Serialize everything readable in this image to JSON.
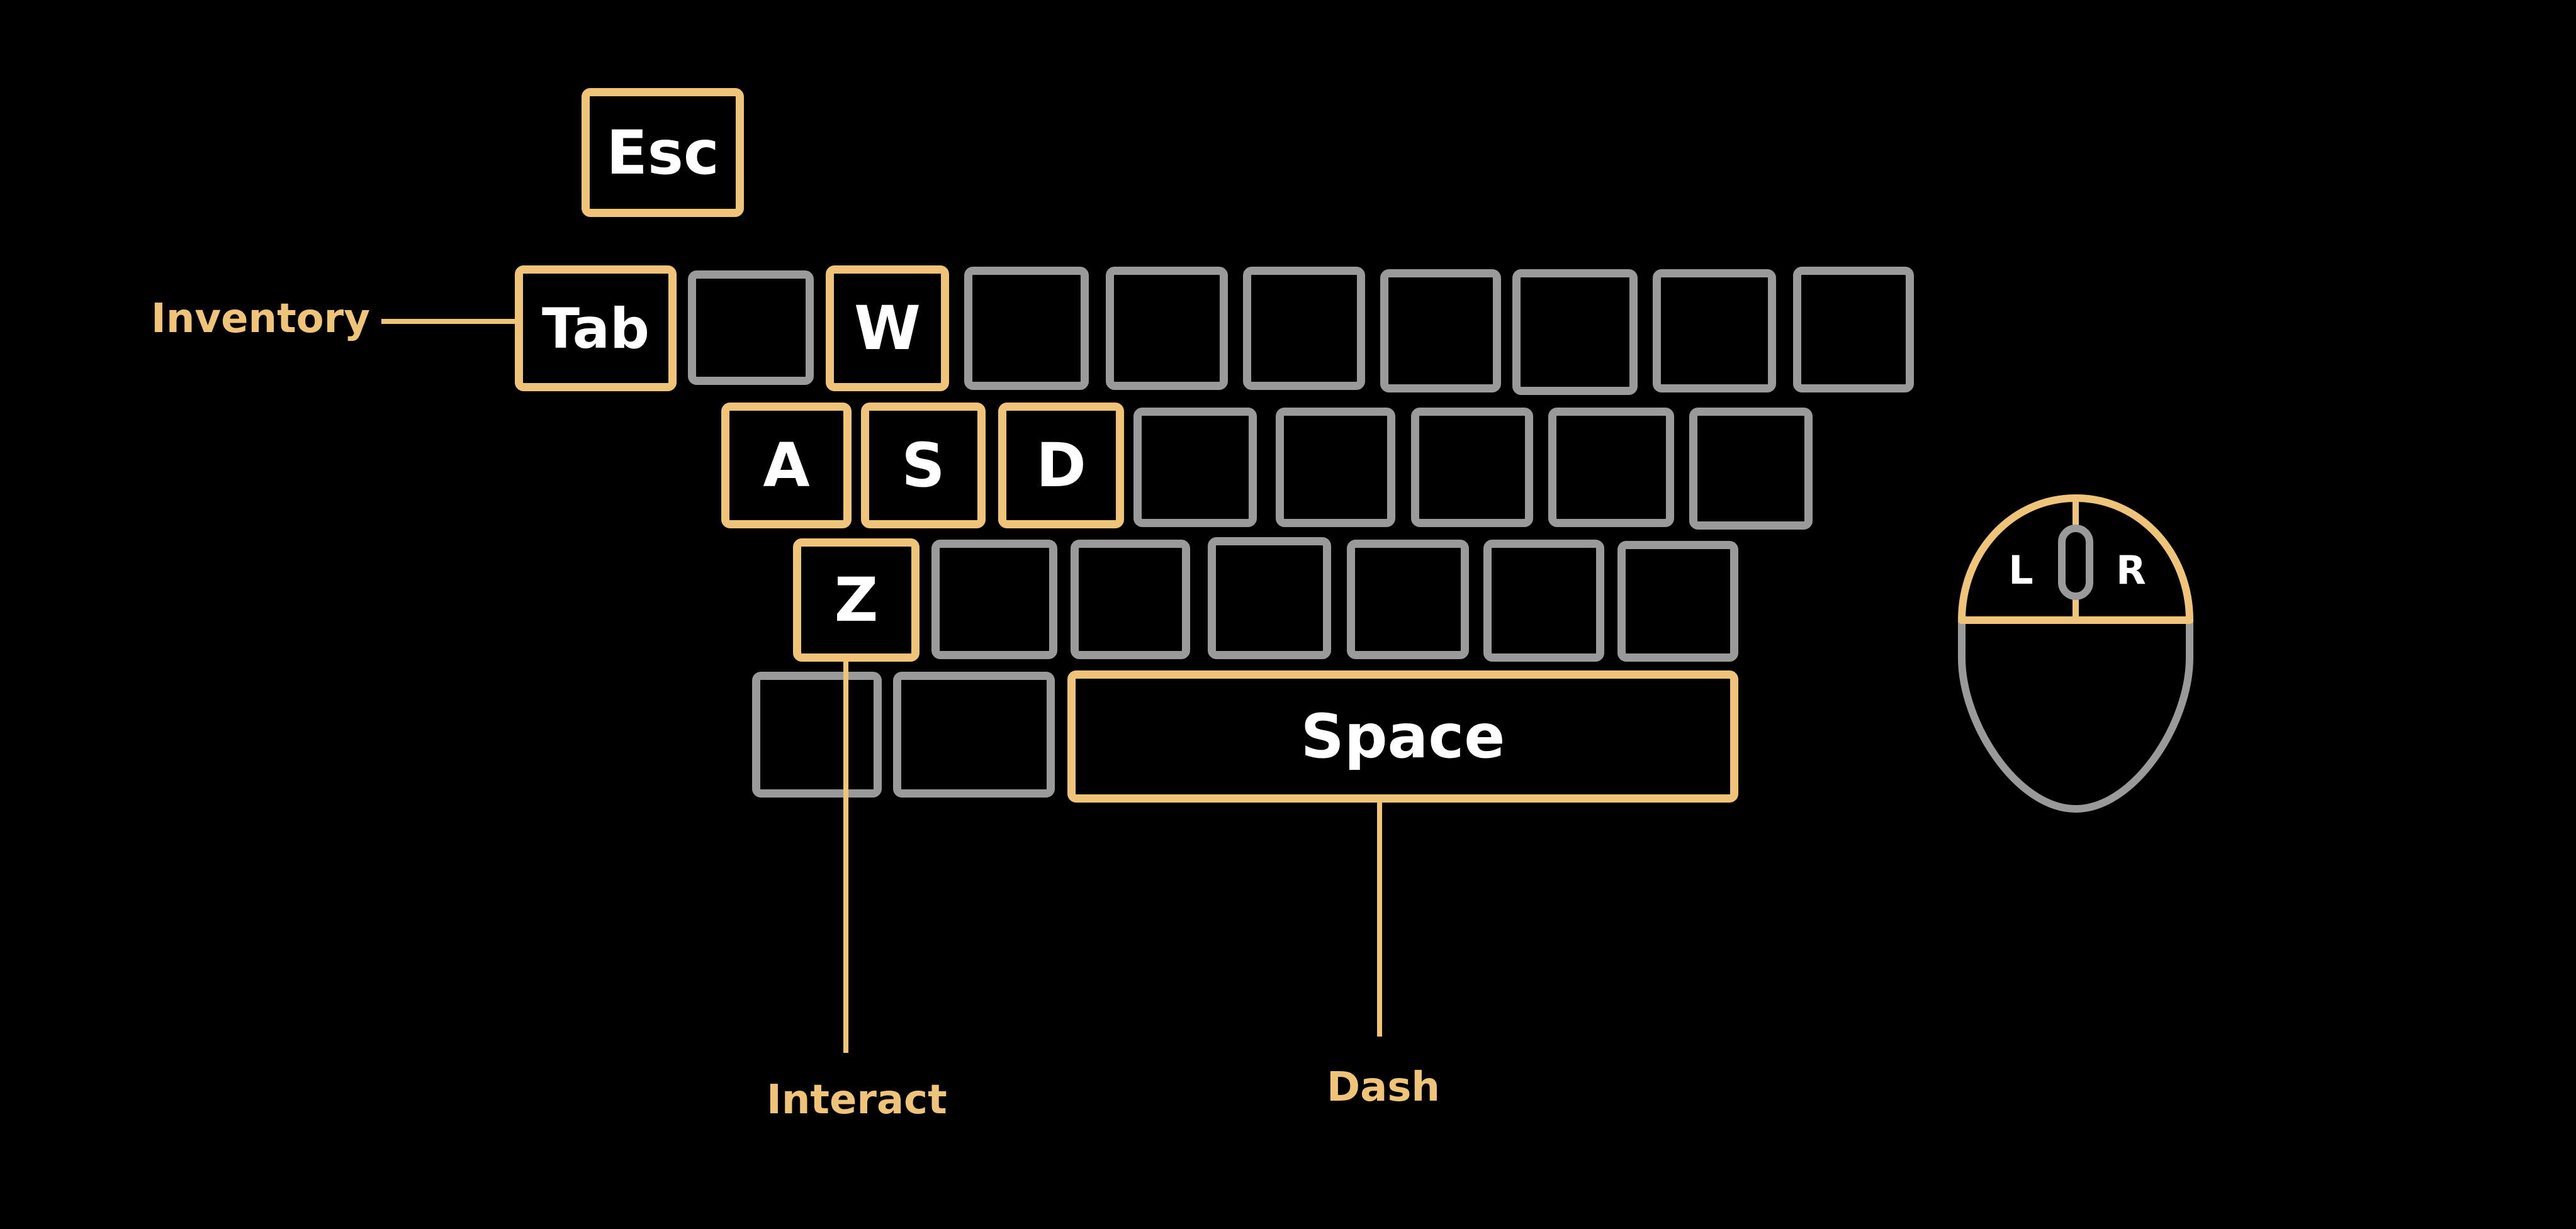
{
  "colors": {
    "background": "#000000",
    "highlight": "#f0c478",
    "inactive": "#9a9a9a",
    "key_text": "#ffffff"
  },
  "keys": {
    "esc": "Esc",
    "tab": "Tab",
    "w": "W",
    "a": "A",
    "s": "S",
    "d": "D",
    "z": "Z",
    "space": "Space"
  },
  "mouse": {
    "left": "L",
    "right": "R"
  },
  "annotations": {
    "inventory": "Inventory",
    "interact": "Interact",
    "dash": "Dash"
  }
}
